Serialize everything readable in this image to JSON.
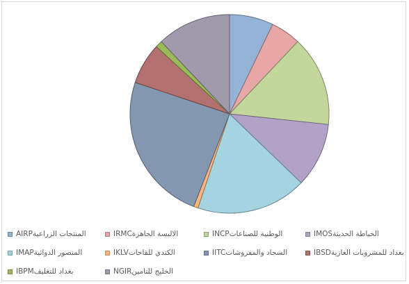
{
  "chart_data": {
    "type": "pie",
    "title": "",
    "start_angle_deg": 0,
    "slices": [
      {
        "label": "AIRPالمنتجات الزراعية",
        "value": 7.0,
        "color": "#95b3d7"
      },
      {
        "label": "IRMCالالبسة الجاهزة",
        "value": 4.8,
        "color": "#e6a7a6"
      },
      {
        "label": "INCPالوطنية للصناعات",
        "value": 14.4,
        "color": "#c3d69b"
      },
      {
        "label": "IMOSالخياطة الحديثة",
        "value": 10.3,
        "color": "#b3a2c7"
      },
      {
        "label": "IMAPالمنصور الدوائية",
        "value": 17.6,
        "color": "#a5d4e1"
      },
      {
        "label": "IKLVالكندي للقاحات",
        "value": 0.7,
        "color": "#fbb47c"
      },
      {
        "label": "IITCالسجاد والمفروشات",
        "value": 23.8,
        "color": "#8497b0"
      },
      {
        "label": "IBSDبغداد للمشروبات الغازية",
        "value": 6.6,
        "color": "#b2706e"
      },
      {
        "label": "IBPMبغداد للتغليف",
        "value": 1.1,
        "color": "#9bbb59"
      },
      {
        "label": "NGIRالخليج للتامين",
        "value": 11.8,
        "color": "#a09aac"
      }
    ]
  }
}
